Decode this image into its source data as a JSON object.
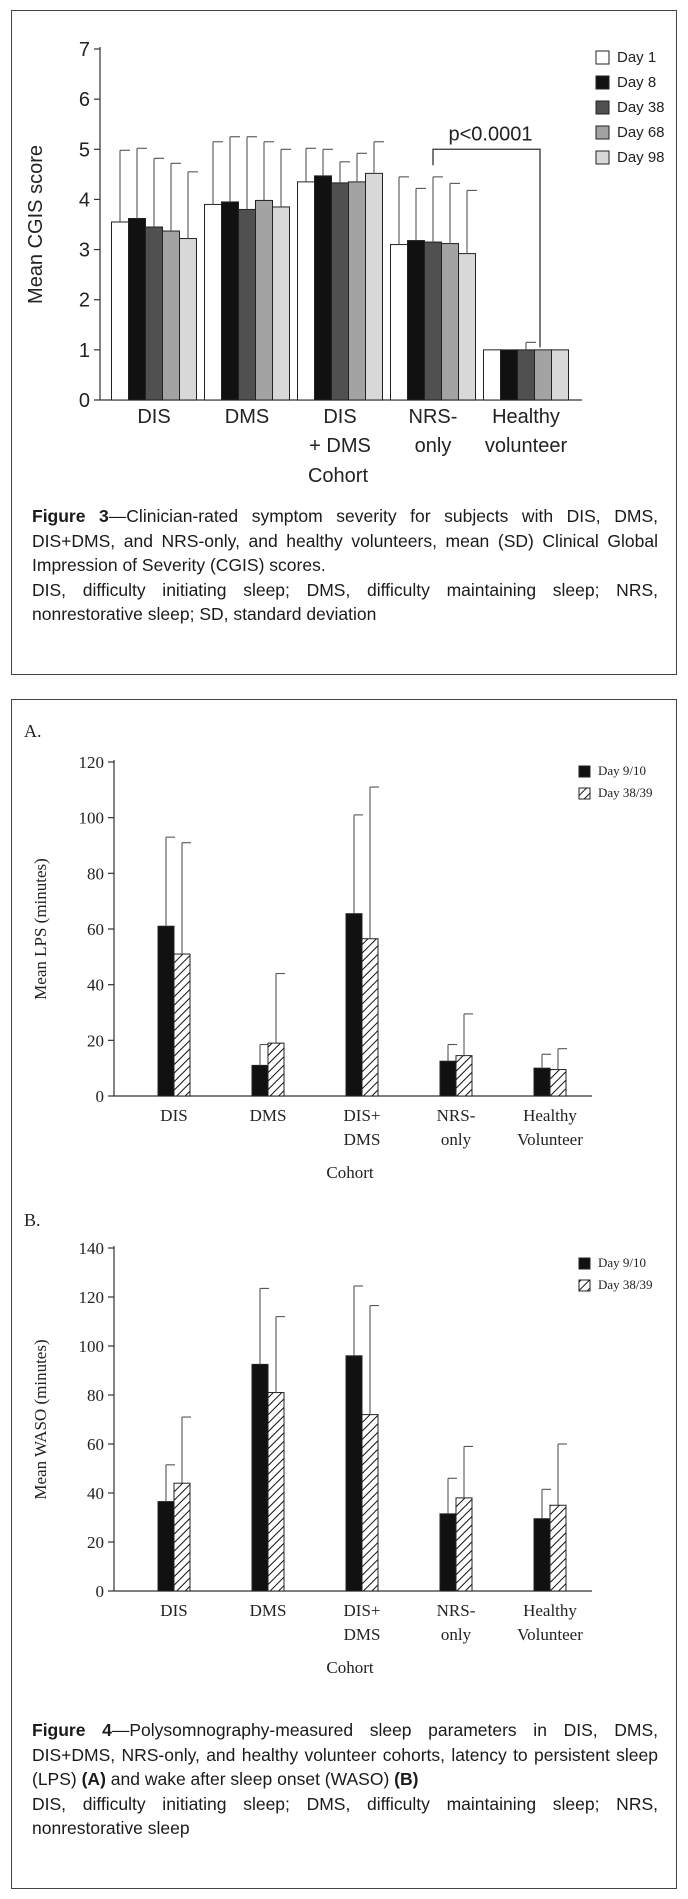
{
  "figure3": {
    "caption_label": "Figure 3",
    "caption_text": "—Clinician-rated symptom severity for subjects with DIS, DMS, DIS+DMS, and NRS-only, and healthy volunteers, mean (SD) Clinical Global Impression of Severity (CGIS) scores.",
    "caption_abbrev": "DIS, difficulty initiating sleep; DMS, difficulty maintaining sleep; NRS, nonrestorative sleep; SD, standard deviation"
  },
  "figure4": {
    "caption_label": "Figure 4",
    "caption_text_1": "—Polysomnography-measured sleep parameters in DIS, DMS, DIS+DMS, NRS-only, and healthy volunteer cohorts, latency to persistent sleep (LPS) ",
    "caption_bold_a": "(A)",
    "caption_text_2": " and wake after sleep onset (WASO) ",
    "caption_bold_b": "(B)",
    "caption_abbrev": "DIS, difficulty initiating sleep; DMS, difficulty maintaining sleep; NRS, nonrestorative sleep"
  },
  "chart_data": [
    {
      "type": "bar",
      "ylabel": "Mean CGIS score",
      "xlabel": "Cohort",
      "ylim": [
        0,
        7
      ],
      "yticks": [
        0,
        1,
        2,
        3,
        4,
        5,
        6,
        7
      ],
      "categories": [
        [
          "DIS"
        ],
        [
          "DMS"
        ],
        [
          "DIS",
          "+ DMS"
        ],
        [
          "NRS-",
          "only"
        ],
        [
          "Healthy",
          "volunteer"
        ]
      ],
      "series": [
        {
          "name": "Day 1",
          "color": "#ffffff",
          "values": [
            3.55,
            3.9,
            4.35,
            3.1,
            1.0
          ],
          "sd_upper": [
            4.98,
            5.15,
            5.02,
            4.45,
            1.0
          ]
        },
        {
          "name": "Day 8",
          "color": "#111111",
          "values": [
            3.62,
            3.95,
            4.47,
            3.18,
            1.0
          ],
          "sd_upper": [
            5.02,
            5.25,
            5.0,
            4.22,
            1.0
          ]
        },
        {
          "name": "Day 38",
          "color": "#505050",
          "values": [
            3.45,
            3.8,
            4.33,
            3.15,
            1.0
          ],
          "sd_upper": [
            4.82,
            5.25,
            4.75,
            4.45,
            1.15
          ]
        },
        {
          "name": "Day 68",
          "color": "#a3a3a3",
          "values": [
            3.37,
            3.98,
            4.35,
            3.12,
            1.0
          ],
          "sd_upper": [
            4.72,
            5.15,
            4.92,
            4.32,
            1.0
          ]
        },
        {
          "name": "Day 98",
          "color": "#d8d8d8",
          "values": [
            3.22,
            3.85,
            4.52,
            2.92,
            1.0
          ],
          "sd_upper": [
            4.55,
            5.0,
            5.15,
            4.18,
            1.0
          ]
        }
      ],
      "annotations": [
        {
          "text": "p<0.0001"
        }
      ]
    },
    {
      "type": "bar",
      "panel": "A.",
      "ylabel": "Mean LPS (minutes)",
      "xlabel": "Cohort",
      "ylim": [
        0,
        120
      ],
      "yticks": [
        0,
        20,
        40,
        60,
        80,
        100,
        120
      ],
      "categories": [
        [
          "DIS"
        ],
        [
          "DMS"
        ],
        [
          "DIS+",
          "DMS"
        ],
        [
          "NRS-",
          "only"
        ],
        [
          "Healthy",
          "Volunteer"
        ]
      ],
      "series": [
        {
          "name": "Day 9/10",
          "pattern": "solid",
          "values": [
            61,
            11,
            65.5,
            12.5,
            10
          ],
          "sd_upper": [
            93,
            18.5,
            101,
            18.5,
            15
          ]
        },
        {
          "name": "Day 38/39",
          "pattern": "hatched",
          "values": [
            51,
            19,
            56.5,
            14.5,
            9.5
          ],
          "sd_upper": [
            91,
            44,
            111,
            29.5,
            17
          ]
        }
      ]
    },
    {
      "type": "bar",
      "panel": "B.",
      "ylabel": "Mean WASO (minutes)",
      "xlabel": "Cohort",
      "ylim": [
        0,
        140
      ],
      "yticks": [
        0,
        20,
        40,
        60,
        80,
        100,
        120,
        140
      ],
      "categories": [
        [
          "DIS"
        ],
        [
          "DMS"
        ],
        [
          "DIS+",
          "DMS"
        ],
        [
          "NRS-",
          "only"
        ],
        [
          "Healthy",
          "Volunteer"
        ]
      ],
      "series": [
        {
          "name": "Day 9/10",
          "pattern": "solid",
          "values": [
            36.5,
            92.5,
            96,
            31.5,
            29.5
          ],
          "sd_upper": [
            51.5,
            123.5,
            124.5,
            46,
            41.5
          ]
        },
        {
          "name": "Day 38/39",
          "pattern": "hatched",
          "values": [
            44,
            81,
            72,
            38,
            35
          ],
          "sd_upper": [
            71,
            112,
            116.5,
            59,
            60
          ]
        }
      ]
    }
  ]
}
